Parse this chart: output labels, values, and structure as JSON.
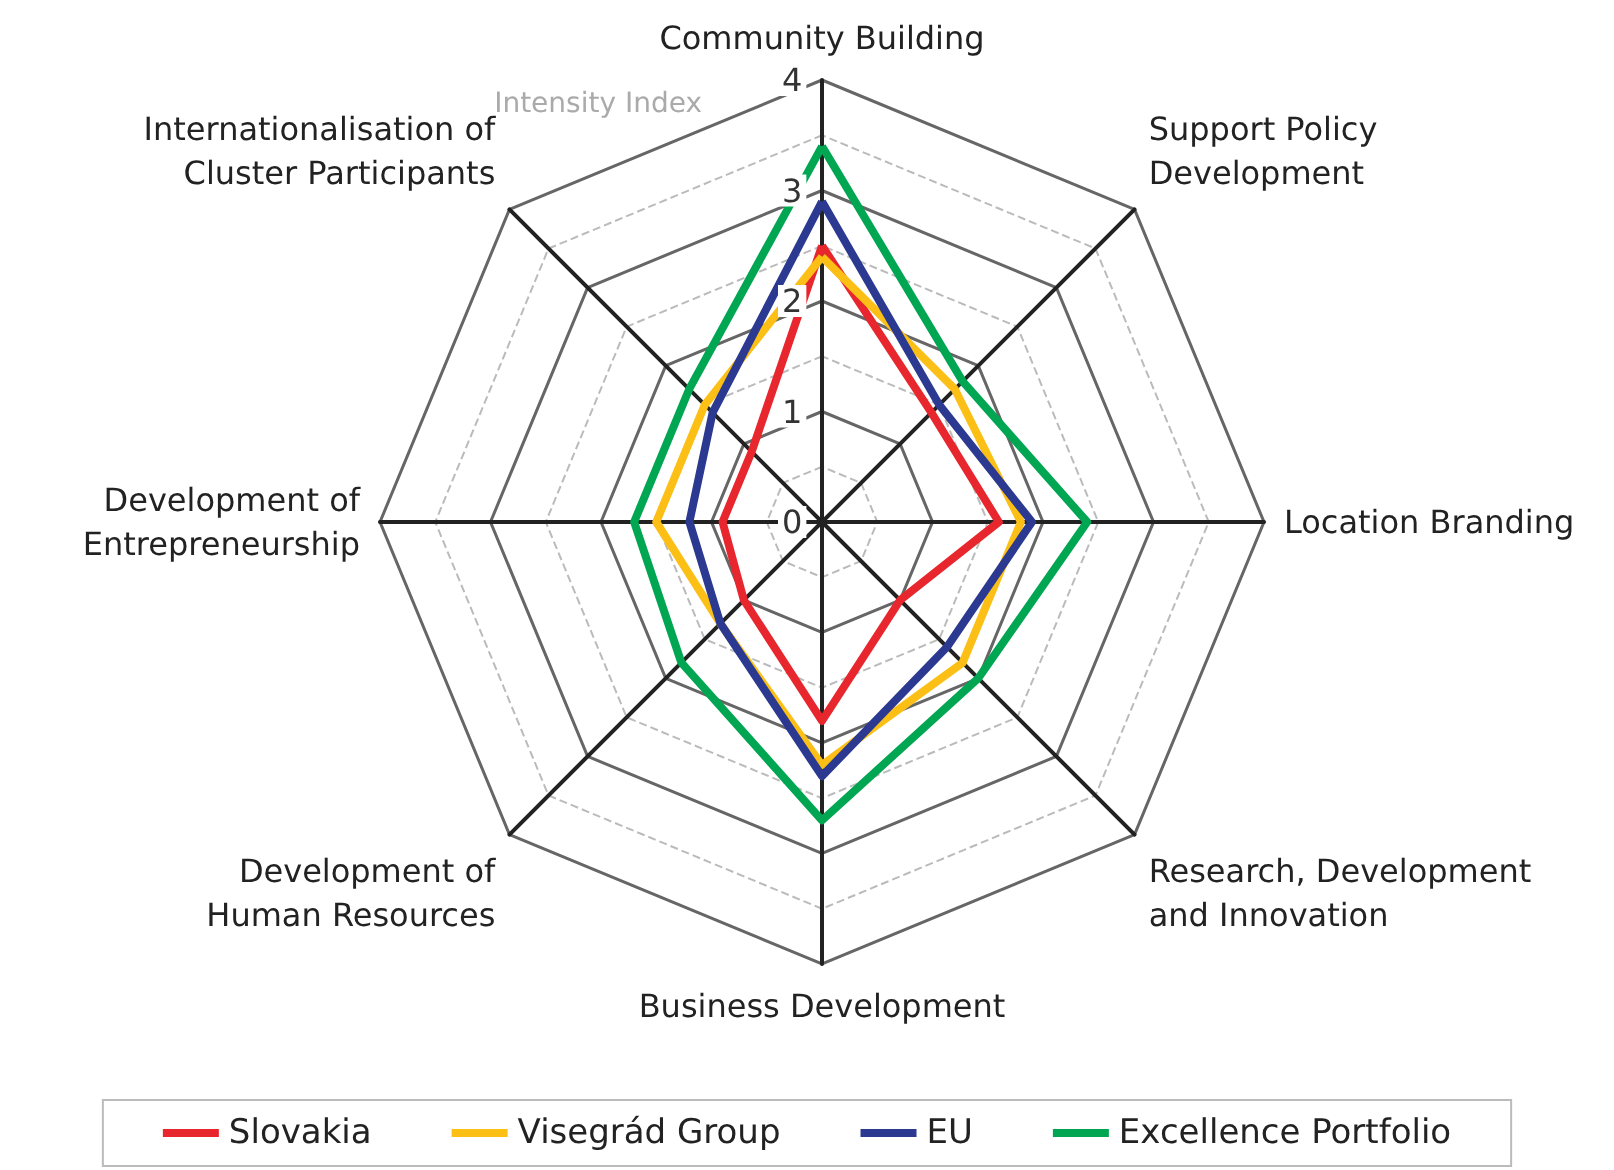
{
  "chart_data": {
    "type": "radar",
    "ylabel": "Intensity Index",
    "categories": [
      "Community Building",
      "Support Policy Development",
      "Location Branding",
      "Research, Development and Innovation",
      "Business Development",
      "Development of Human Resources",
      "Development of Entrepreneurship",
      "Internationalisation of Cluster Participants"
    ],
    "series": [
      {
        "name": "Slovakia",
        "color": "#e8262d",
        "values": [
          2.5,
          1.4,
          1.6,
          1.0,
          1.8,
          1.0,
          0.9,
          0.9
        ]
      },
      {
        "name": "Visegrád Group",
        "color": "#fbbf16",
        "values": [
          2.4,
          1.7,
          1.8,
          1.8,
          2.2,
          1.3,
          1.5,
          1.5
        ]
      },
      {
        "name": "EU",
        "color": "#2b3990",
        "values": [
          2.9,
          1.5,
          1.9,
          1.6,
          2.3,
          1.3,
          1.2,
          1.4
        ]
      },
      {
        "name": "Excellence Portfolio",
        "color": "#00a651",
        "values": [
          3.4,
          1.8,
          2.4,
          2.0,
          2.7,
          1.8,
          1.7,
          1.7
        ]
      }
    ],
    "ylim": [
      0,
      4
    ],
    "yticks": [
      0,
      1,
      2,
      3,
      4
    ],
    "grid": true,
    "legend": "bottom",
    "marker": "none",
    "line_style": "solid"
  }
}
